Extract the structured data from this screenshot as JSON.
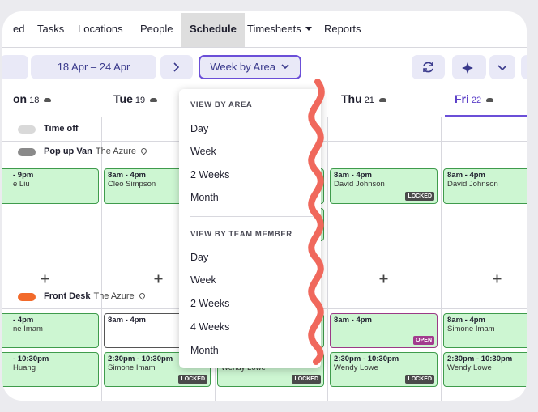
{
  "nav": {
    "items": [
      "ed",
      "Tasks",
      "Locations",
      "People",
      "Schedule",
      "Timesheets",
      "Reports"
    ],
    "active": 4
  },
  "toolbar": {
    "date_range": "18 Apr – 24 Apr",
    "view": "Week by Area"
  },
  "days": [
    {
      "name": "on",
      "date": "18"
    },
    {
      "name": "Tue",
      "date": "19"
    },
    null,
    {
      "name": "Thu",
      "date": "21"
    },
    {
      "name": "Fri",
      "date": "22"
    }
  ],
  "rows": [
    {
      "label": "Time off"
    },
    {
      "label": "Pop up Van",
      "location": "The Azure",
      "columns": [
        [
          {
            "time": "- 9pm",
            "name": "e Liu"
          }
        ],
        [
          {
            "time": "8am - 4pm",
            "name": "Cleo Simpson"
          }
        ],
        [],
        [
          {
            "time": "8am - 4pm",
            "name": "David Johnson",
            "badge": "LOCKED"
          }
        ],
        [
          {
            "time": "8am - 4pm",
            "name": "David Johnson"
          }
        ]
      ]
    },
    {
      "label": "Front Desk",
      "location": "The Azure",
      "columns": [
        [
          {
            "time": "- 4pm",
            "name": "ne Imam"
          },
          {
            "time": "- 10:30pm",
            "name": "Huang"
          }
        ],
        [
          {
            "time": "8am - 4pm"
          },
          {
            "time": "2:30pm - 10:30pm",
            "name": "Simone Imam",
            "badge": "LOCKED"
          }
        ],
        [
          {
            "name": "Wendy Lowe",
            "badge": "LOCKED"
          }
        ],
        [
          {
            "time": "8am - 4pm",
            "badge": "OPEN"
          },
          {
            "time": "2:30pm - 10:30pm",
            "name": "Wendy Lowe",
            "badge": "LOCKED"
          }
        ],
        [
          {
            "time": "8am - 4pm",
            "name": "Simone Imam"
          },
          {
            "time": "2:30pm - 10:30pm",
            "name": "Wendy Lowe"
          }
        ]
      ]
    }
  ],
  "menu": {
    "sections": [
      {
        "heading": "VIEW BY AREA",
        "options": [
          "Day",
          "Week",
          "2 Weeks",
          "Month"
        ]
      },
      {
        "heading": "VIEW BY TEAM MEMBER",
        "options": [
          "Day",
          "Week",
          "2 Weeks",
          "4 Weeks",
          "Month"
        ]
      }
    ]
  }
}
